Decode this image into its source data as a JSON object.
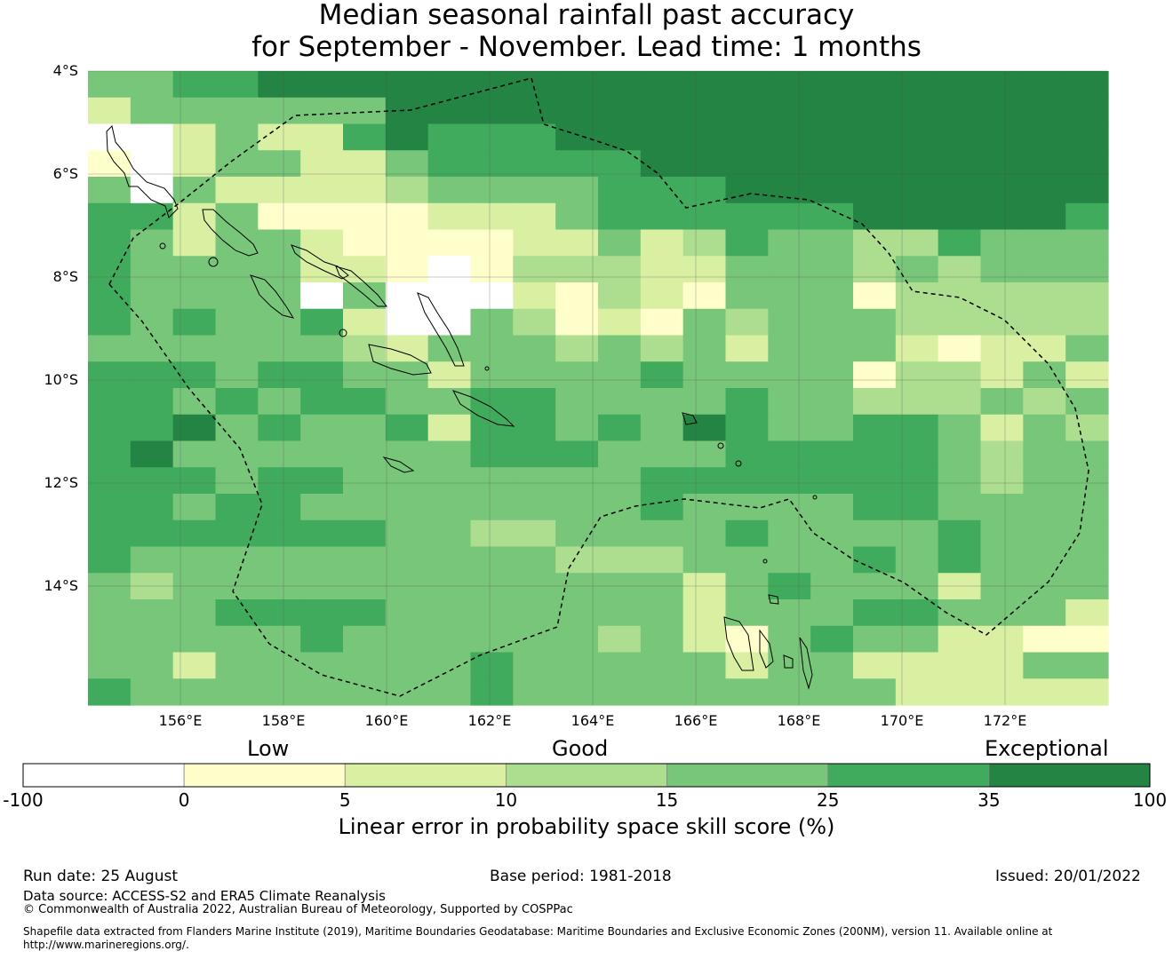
{
  "title": {
    "line1": "Median seasonal rainfall past accuracy",
    "line2": "for September - November. Lead time: 1 months"
  },
  "map": {
    "lat_labels": [
      "4°S",
      "6°S",
      "8°S",
      "10°S",
      "12°S",
      "14°S"
    ],
    "lon_labels": [
      "156°E",
      "158°E",
      "160°E",
      "162°E",
      "164°E",
      "166°E",
      "168°E",
      "170°E",
      "172°E"
    ],
    "grid_key": "W=white(<0) Y=0-5 L=5-10 G=10-15 M=15-25 D=25-35 X=35-100",
    "grid": [
      "MMDDXXXXXXXXXXXXXXXXXXXXXX",
      "LMMMMMMXXXXXXXXXXXXXXXXXXX",
      "WWLMLLDXDDDXXXXXXXXXXXXXXX",
      "YWLMMLLMDDDDDXXXXXXXXXXXXX",
      "MWMLLLLGMMMMDDDXXXXXXXXXXX",
      "DDLMYYYYLLLMDDDDDDXXXXXDXD",
      "DMLMMLYYYYLLMLGDMMGGDMMM",
      "DMMMMLLYWYGGGLLMMMGMGMMM",
      "DMMMMWMWWWLYGLYMMMYGGGGGMM",
      "DMDMMDLWWMGYLYMGMMMGGGGGGM",
      "MMMMMMGLMMMGMGMLMMMLYLLMMD",
      "DDDMDDMMLMMMMDMMMMYGGLMLLD",
      "DDMDMDDMMDDMMMMDMMGGGMGMMM",
      "DDXMDMMDLDDMDMXDMMDDMLMGLY",
      "DXMMMMMMMDDDMMMDDDDDMGMMMD",
      "DDDMDDMMMMMMMDDDDDDDMGMMMMY",
      "DDMDDMMMMMMMMDMMMMDDMMMMMG",
      "DDDDDDDMMGGMMMMDMMMMDMMMMM",
      "DMMMMMMMMMMGGGMMMMDMDMMMMM",
      "MGMMMMMMMMMMMMLMDMMMLMMMMM",
      "MMMDDDDMMMMMMMLMMMDDMMMLMM",
      "MMMMMDMMMMMMGMLYMDMMLLYYYM",
      "MMLMMMMMMDMMMMMLMMLLLLMMLL",
      "DMMMMMMMMDMMMMMMMMMLLLLLLL"
    ]
  },
  "legend": {
    "category_low": "Low",
    "category_good": "Good",
    "category_exceptional": "Exceptional",
    "ticks": [
      "-100",
      "0",
      "5",
      "10",
      "15",
      "25",
      "35",
      "100"
    ],
    "colors": [
      "#ffffff",
      "#ffffcc",
      "#d9f0a3",
      "#addd8e",
      "#78c679",
      "#41ab5d",
      "#238443"
    ],
    "title": "Linear error in probability space skill score (%)"
  },
  "footer": {
    "run_date": "Run date: 25 August",
    "base_period": "Base period: 1981-2018",
    "issued": "Issued: 20/01/2022",
    "data_source": "Data source: ACCESS-S2 and ERA5 Climate Reanalysis",
    "copyright": "© Commonwealth of Australia 2022, Australian Bureau of Meteorology, Supported by COSPPac",
    "shapefile": "Shapefile data extracted from Flanders Marine Institute (2019), Maritime Boundaries Geodatabase: Maritime Boundaries and Exclusive Economic Zones (200NM), version 11. Available online at http://www.marineregions.org/."
  }
}
